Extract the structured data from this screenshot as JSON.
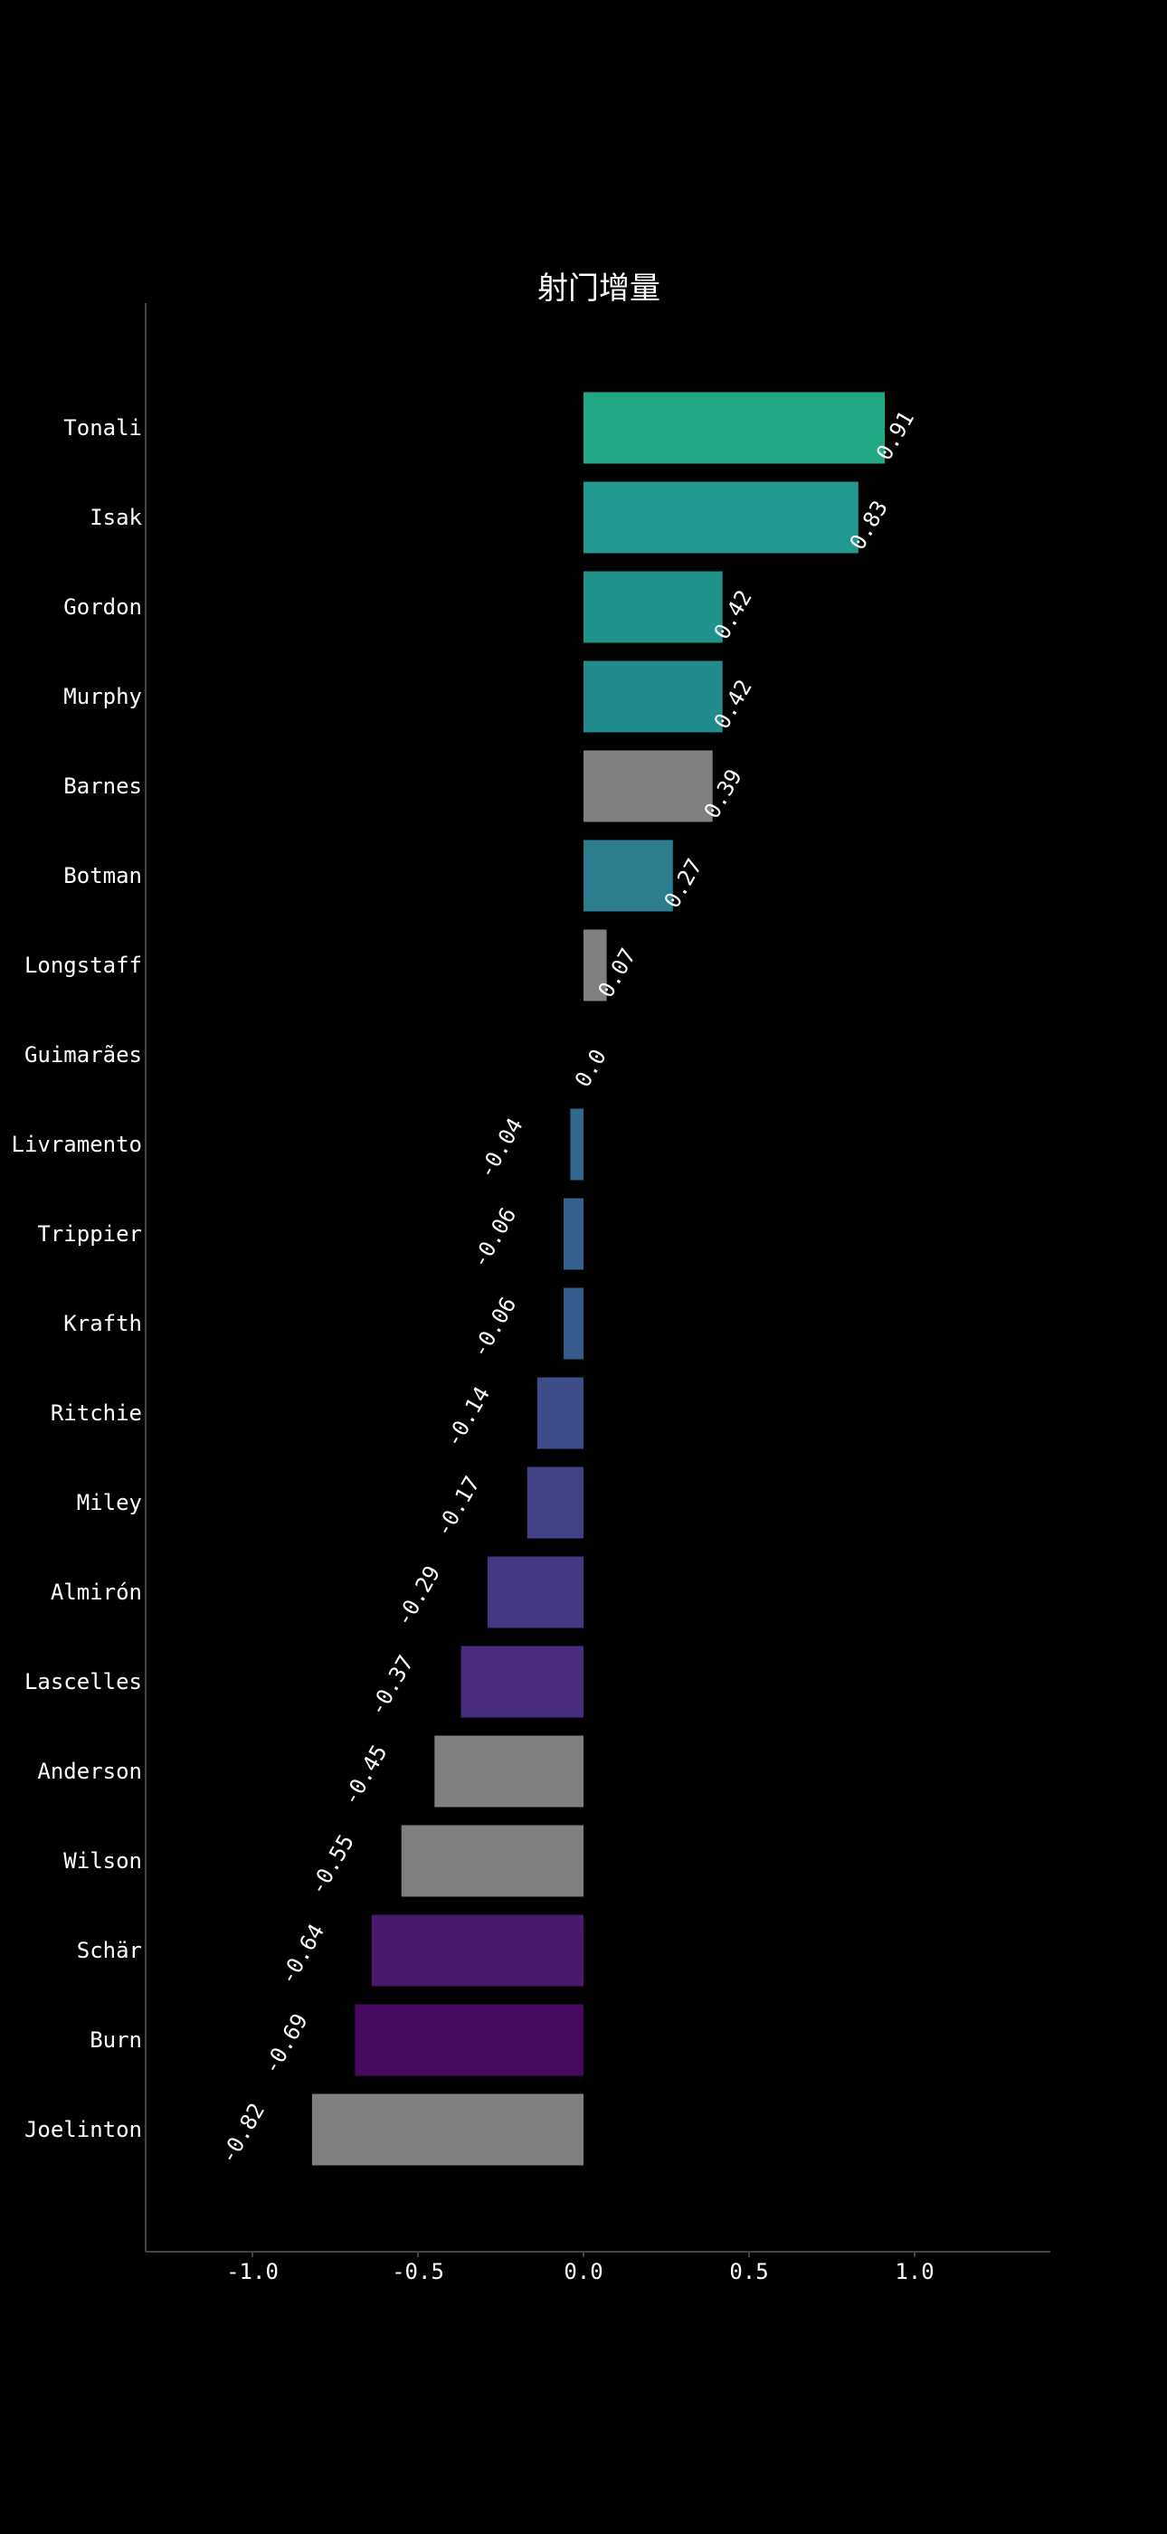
{
  "chart_data": {
    "type": "bar",
    "orientation": "horizontal",
    "title": "射门增量",
    "xlabel": "",
    "ylabel": "",
    "xlim": [
      -1.4,
      1.4
    ],
    "xticks": [
      -1.0,
      -0.5,
      0.0,
      0.5,
      1.0
    ],
    "xtick_labels": [
      "-1.0",
      "-0.5",
      "0.0",
      "0.5",
      "1.0"
    ],
    "grid": false,
    "legend": "none",
    "categories": [
      "Tonali",
      "Isak",
      "Gordon",
      "Murphy",
      "Barnes",
      "Botman",
      "Longstaff",
      "Guimarães",
      "Livramento",
      "Trippier",
      "Krafth",
      "Ritchie",
      "Miley",
      "Almirón",
      "Lascelles",
      "Anderson",
      "Wilson",
      "Schär",
      "Burn",
      "Joelinton"
    ],
    "values": [
      0.91,
      0.83,
      0.42,
      0.42,
      0.39,
      0.27,
      0.07,
      0.0,
      -0.04,
      -0.06,
      -0.06,
      -0.14,
      -0.17,
      -0.29,
      -0.37,
      -0.45,
      -0.55,
      -0.64,
      -0.69,
      -0.82
    ],
    "data_labels": [
      "0.91",
      "0.83",
      "0.42",
      "0.42",
      "0.39",
      "0.27",
      "0.07",
      "0.0",
      "-0.04",
      "-0.06",
      "-0.06",
      "-0.14",
      "-0.17",
      "-0.29",
      "-0.37",
      "-0.45",
      "-0.55",
      "-0.64",
      "-0.69",
      "-0.82"
    ],
    "colors": [
      "#22a884",
      "#21998e",
      "#20928c",
      "#228b8d",
      "#808080",
      "#2c7e8e",
      "#808080",
      "#808080",
      "#31698e",
      "#355f8d",
      "#365c8d",
      "#3e4c8a",
      "#424186",
      "#453882",
      "#472d7b",
      "#808080",
      "#808080",
      "#481a6c",
      "#460b5e",
      "#808080"
    ]
  }
}
